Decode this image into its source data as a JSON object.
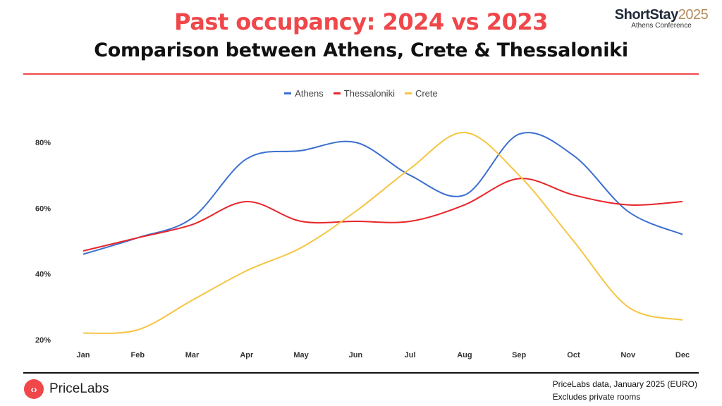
{
  "header": {
    "title": "Past occupancy: 2024 vs 2023",
    "subtitle": "Comparison between Athens, Crete & Thessaloniki",
    "brand_name": "ShortStay",
    "brand_year": "2025",
    "brand_sub": "Athens Conference"
  },
  "footer": {
    "logo_text": "PriceLabs",
    "source_line1": "PriceLabs data, January 2025 (EURO)",
    "source_line2": "Excludes private rooms"
  },
  "colors": {
    "accent": "#f0474a"
  },
  "chart_data": {
    "type": "line",
    "title": "Past occupancy: 2024 vs 2023",
    "categories": [
      "Jan",
      "Feb",
      "Mar",
      "Apr",
      "May",
      "Jun",
      "Jul",
      "Aug",
      "Sep",
      "Oct",
      "Nov",
      "Dec"
    ],
    "y_ticks": [
      "20%",
      "40%",
      "60%",
      "80%"
    ],
    "ylim": [
      20,
      80
    ],
    "grid": false,
    "legend_position": "top-center",
    "series": [
      {
        "name": "Athens",
        "color": "#3b6fd0",
        "values": [
          46,
          51,
          57,
          75,
          77.5,
          80,
          70,
          64,
          82.5,
          76,
          59,
          52
        ]
      },
      {
        "name": "Thessaloniki",
        "color": "#e8262b",
        "values": [
          47,
          51,
          55,
          62,
          56,
          56,
          56,
          61,
          69,
          64,
          61,
          62
        ]
      },
      {
        "name": "Crete",
        "color": "#f5c542",
        "values": [
          22,
          23,
          32,
          41,
          48,
          59,
          72,
          83,
          70,
          50,
          30,
          26
        ]
      }
    ]
  }
}
